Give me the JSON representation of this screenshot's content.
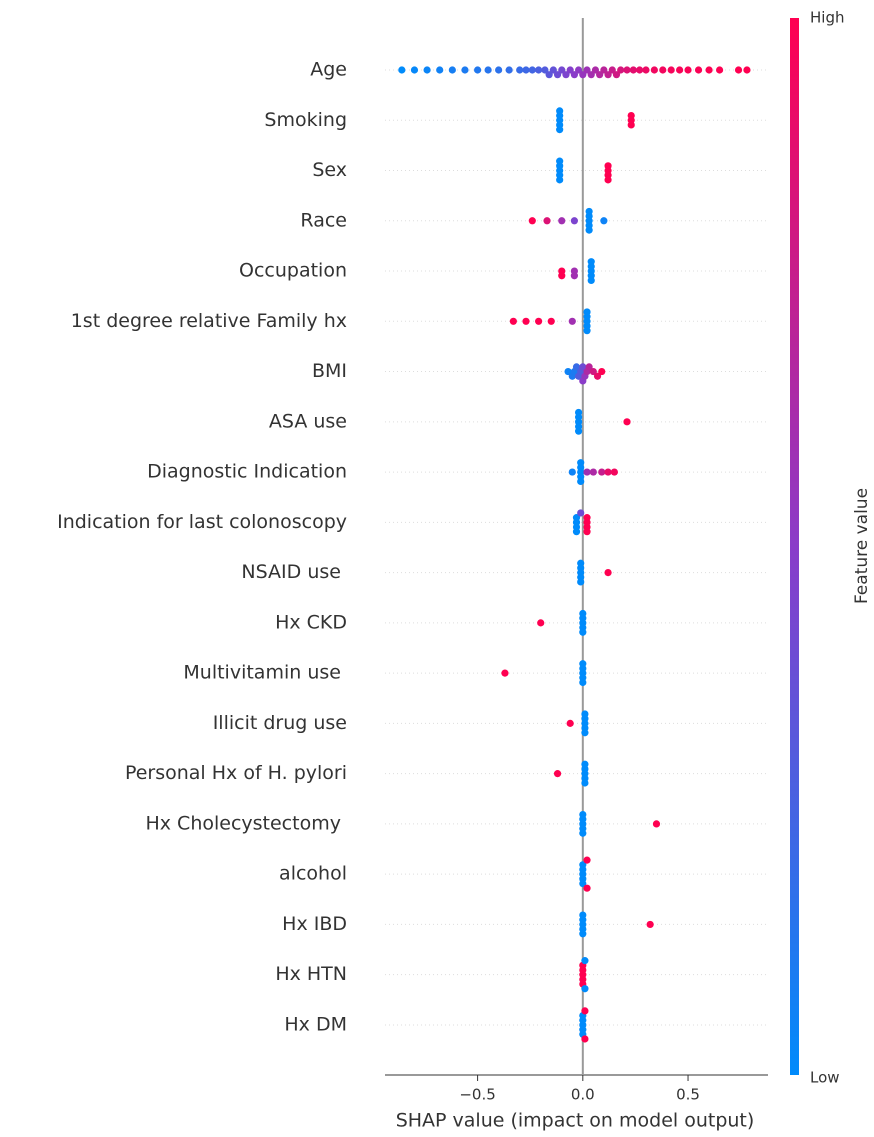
{
  "chart_data": {
    "type": "beeswarm",
    "xlabel": "SHAP value (impact on model output)",
    "xlim": [
      -0.94,
      0.88
    ],
    "xticks": [
      {
        "value": -0.5,
        "label": "−0.5"
      },
      {
        "value": 0,
        "label": "0.0"
      },
      {
        "value": 0.5,
        "label": "0.5"
      }
    ],
    "colormap": [
      "#008bfb",
      "#8a3cc9",
      "#ff0051"
    ],
    "colorbar_label": "Feature value",
    "colorbar_high": "High",
    "colorbar_low": "Low",
    "series": [
      {
        "name": "Age",
        "values": [
          -0.86,
          -0.8,
          -0.74,
          -0.68,
          -0.62,
          -0.56,
          -0.5,
          -0.45,
          -0.4,
          -0.35,
          -0.3,
          -0.27,
          -0.24,
          -0.21,
          -0.18,
          -0.16,
          -0.14,
          -0.12,
          -0.1,
          -0.08,
          -0.06,
          -0.04,
          -0.02,
          0,
          0.02,
          0.04,
          0.06,
          0.08,
          0.1,
          0.12,
          0.14,
          0.16,
          0.18,
          0.21,
          0.24,
          0.27,
          0.3,
          0.34,
          0.38,
          0.42,
          0.46,
          0.5,
          0.55,
          0.6,
          0.65,
          0.74,
          0.78
        ],
        "feature_values": [
          0,
          0.02,
          0.04,
          0.06,
          0.08,
          0.1,
          0.12,
          0.14,
          0.16,
          0.18,
          0.2,
          0.22,
          0.24,
          0.27,
          0.3,
          0.33,
          0.36,
          0.39,
          0.42,
          0.45,
          0.48,
          0.5,
          0.52,
          0.55,
          0.58,
          0.61,
          0.64,
          0.67,
          0.7,
          0.73,
          0.76,
          0.79,
          0.82,
          0.85,
          0.88,
          0.9,
          0.92,
          0.94,
          0.95,
          0.96,
          0.97,
          0.98,
          0.98,
          0.99,
          0.99,
          1,
          1
        ]
      },
      {
        "name": "Smoking",
        "values": [
          -0.11,
          -0.11,
          -0.11,
          -0.11,
          -0.11,
          0.23,
          0.23,
          0.23
        ],
        "feature_values": [
          0,
          0,
          0,
          0,
          0,
          1,
          1,
          1
        ]
      },
      {
        "name": "Sex",
        "values": [
          -0.11,
          -0.11,
          -0.11,
          -0.11,
          -0.11,
          0.12,
          0.12,
          0.12,
          0.12
        ],
        "feature_values": [
          0,
          0,
          0,
          0,
          0,
          1,
          1,
          1,
          1
        ]
      },
      {
        "name": "Race",
        "values": [
          -0.24,
          -0.17,
          -0.1,
          -0.04,
          0.03,
          0.03,
          0.03,
          0.03,
          0.03,
          0.1
        ],
        "feature_values": [
          1,
          0.85,
          0.6,
          0.45,
          0,
          0,
          0,
          0,
          0,
          0.05
        ]
      },
      {
        "name": "Occupation",
        "values": [
          -0.1,
          -0.1,
          -0.04,
          -0.04,
          0.04,
          0.04,
          0.04,
          0.04,
          0.04
        ],
        "feature_values": [
          1,
          1,
          0.6,
          0.6,
          0,
          0,
          0,
          0,
          0
        ]
      },
      {
        "name": "1st degree relative Family hx",
        "values": [
          -0.33,
          -0.27,
          -0.21,
          -0.15,
          -0.05,
          0.02,
          0.02,
          0.02,
          0.02,
          0.02
        ],
        "feature_values": [
          1,
          1,
          1,
          1,
          0.6,
          0,
          0,
          0,
          0,
          0
        ]
      },
      {
        "name": "BMI",
        "values": [
          -0.07,
          -0.05,
          -0.04,
          -0.03,
          -0.02,
          -0.01,
          0,
          0,
          0.01,
          0.02,
          0.03,
          0.05,
          0.07,
          0.09
        ],
        "feature_values": [
          0.05,
          0.1,
          0.1,
          0.2,
          0.3,
          0.3,
          0.4,
          0.5,
          0.55,
          0.65,
          0.7,
          0.8,
          0.9,
          1
        ]
      },
      {
        "name": "ASA use",
        "values": [
          -0.02,
          -0.02,
          -0.02,
          -0.02,
          -0.02,
          0.21
        ],
        "feature_values": [
          0,
          0,
          0,
          0,
          0,
          1
        ]
      },
      {
        "name": "Diagnostic Indication",
        "values": [
          -0.05,
          -0.01,
          -0.01,
          -0.01,
          -0.01,
          -0.01,
          0.02,
          0.05,
          0.09,
          0.12,
          0.15
        ],
        "feature_values": [
          0.05,
          0,
          0,
          0,
          0,
          0,
          0.6,
          0.65,
          0.75,
          0.9,
          0.95
        ]
      },
      {
        "name": "Indication for last colonoscopy",
        "values": [
          -0.03,
          -0.03,
          -0.03,
          -0.03,
          -0.01,
          0.02,
          0.02,
          0.02,
          0.02
        ],
        "feature_values": [
          0,
          0,
          0,
          0,
          0.4,
          1,
          1,
          1,
          1
        ]
      },
      {
        "name": "NSAID use ",
        "values": [
          -0.01,
          -0.01,
          -0.01,
          -0.01,
          -0.01,
          0.12
        ],
        "feature_values": [
          0,
          0,
          0,
          0,
          0,
          1
        ]
      },
      {
        "name": "Hx CKD",
        "values": [
          -0.2,
          0,
          0,
          0,
          0,
          0
        ],
        "feature_values": [
          1,
          0,
          0,
          0,
          0,
          0
        ]
      },
      {
        "name": "Multivitamin use ",
        "values": [
          -0.37,
          0,
          0,
          0,
          0,
          0
        ],
        "feature_values": [
          1,
          0,
          0,
          0,
          0,
          0
        ]
      },
      {
        "name": "Illicit drug use",
        "values": [
          -0.06,
          0.01,
          0.01,
          0.01,
          0.01,
          0.01
        ],
        "feature_values": [
          1,
          0,
          0,
          0,
          0,
          0
        ]
      },
      {
        "name": "Personal Hx of H. pylori",
        "values": [
          -0.12,
          0.01,
          0.01,
          0.01,
          0.01,
          0.01
        ],
        "feature_values": [
          1,
          0,
          0,
          0,
          0,
          0
        ]
      },
      {
        "name": "Hx Cholecystectomy ",
        "values": [
          0,
          0,
          0,
          0,
          0,
          0.35
        ],
        "feature_values": [
          0,
          0,
          0,
          0,
          0,
          1
        ]
      },
      {
        "name": "alcohol",
        "values": [
          0,
          0,
          0,
          0,
          0,
          0.02,
          0.02
        ],
        "feature_values": [
          0,
          0,
          0,
          0,
          0,
          1,
          1
        ]
      },
      {
        "name": "Hx IBD",
        "values": [
          0,
          0,
          0,
          0,
          0,
          0.32
        ],
        "feature_values": [
          0,
          0,
          0,
          0,
          0,
          1
        ]
      },
      {
        "name": "Hx HTN",
        "values": [
          0,
          0,
          0,
          0,
          0,
          0.01,
          0.01
        ],
        "feature_values": [
          1,
          1,
          1,
          1,
          1,
          0,
          0
        ]
      },
      {
        "name": "Hx DM",
        "values": [
          0,
          0,
          0,
          0,
          0,
          0.01,
          0.01
        ],
        "feature_values": [
          0,
          0,
          0,
          0,
          0,
          1,
          1
        ]
      }
    ]
  }
}
